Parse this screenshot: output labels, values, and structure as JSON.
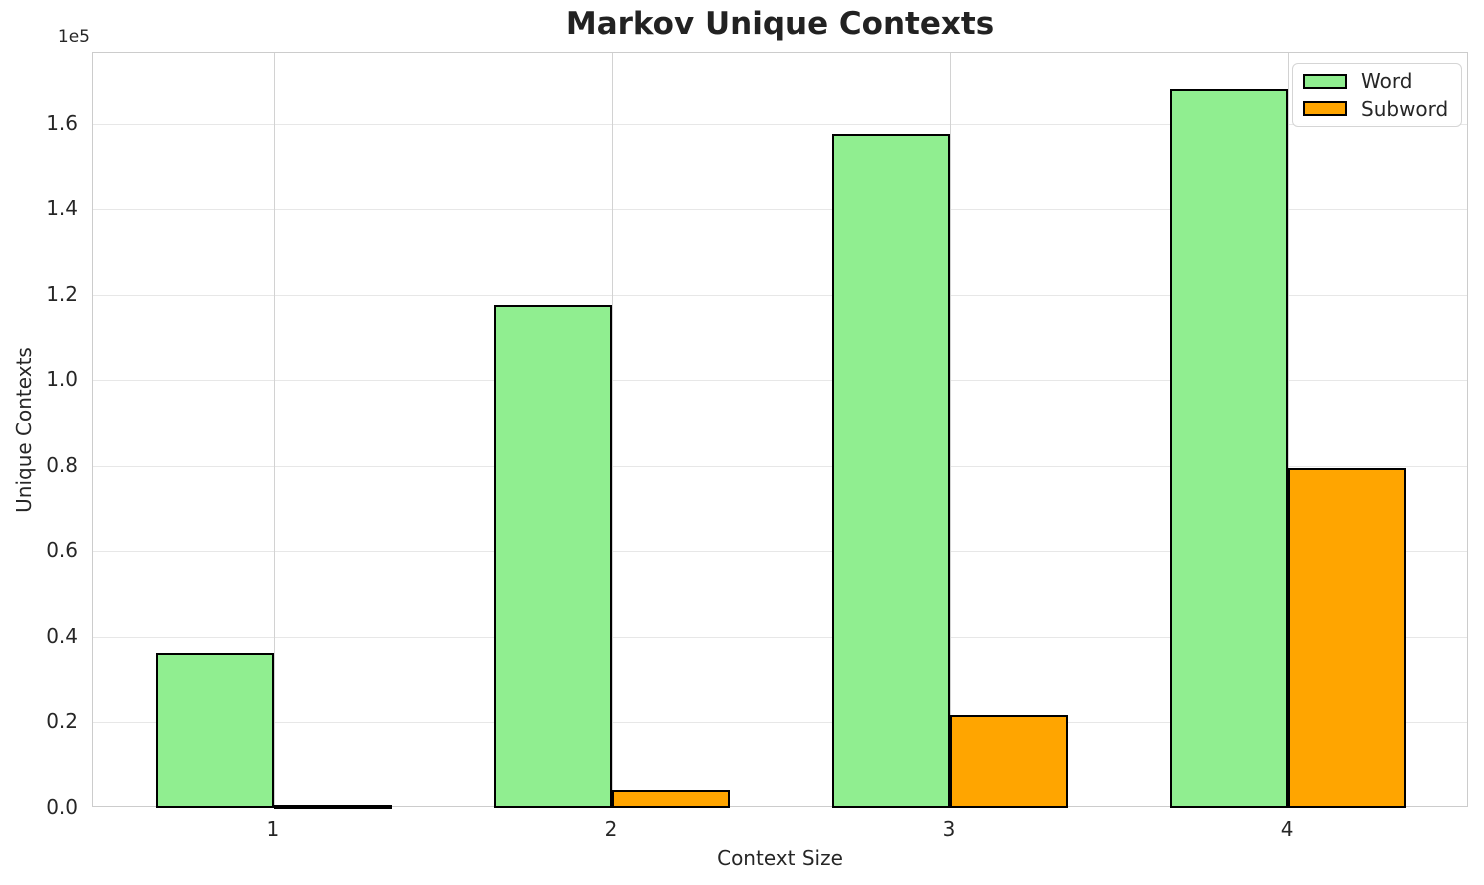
{
  "chart_data": {
    "type": "bar",
    "title": "Markov Unique Contexts",
    "xlabel": "Context Size",
    "ylabel": "Unique Contexts",
    "offset_text": "1e5",
    "categories": [
      "1",
      "2",
      "3",
      "4"
    ],
    "x": [
      1,
      2,
      3,
      4
    ],
    "bar_width": 0.35,
    "xlim": [
      0.465,
      4.535
    ],
    "ylim": [
      0,
      176600
    ],
    "ytick_values": [
      0,
      20000,
      40000,
      60000,
      80000,
      100000,
      120000,
      140000,
      160000
    ],
    "ytick_labels": [
      "0.0",
      "0.2",
      "0.4",
      "0.6",
      "0.8",
      "1.0",
      "1.2",
      "1.4",
      "1.6"
    ],
    "grid": true,
    "legend_position": "upper right",
    "series": [
      {
        "name": "Word",
        "color": "#90EE90",
        "edge_color": "#000000",
        "values": [
          36300,
          117700,
          157700,
          168200
        ]
      },
      {
        "name": "Subword",
        "color": "#FFA500",
        "edge_color": "#000000",
        "values": [
          800,
          4200,
          21800,
          79500
        ]
      }
    ]
  }
}
